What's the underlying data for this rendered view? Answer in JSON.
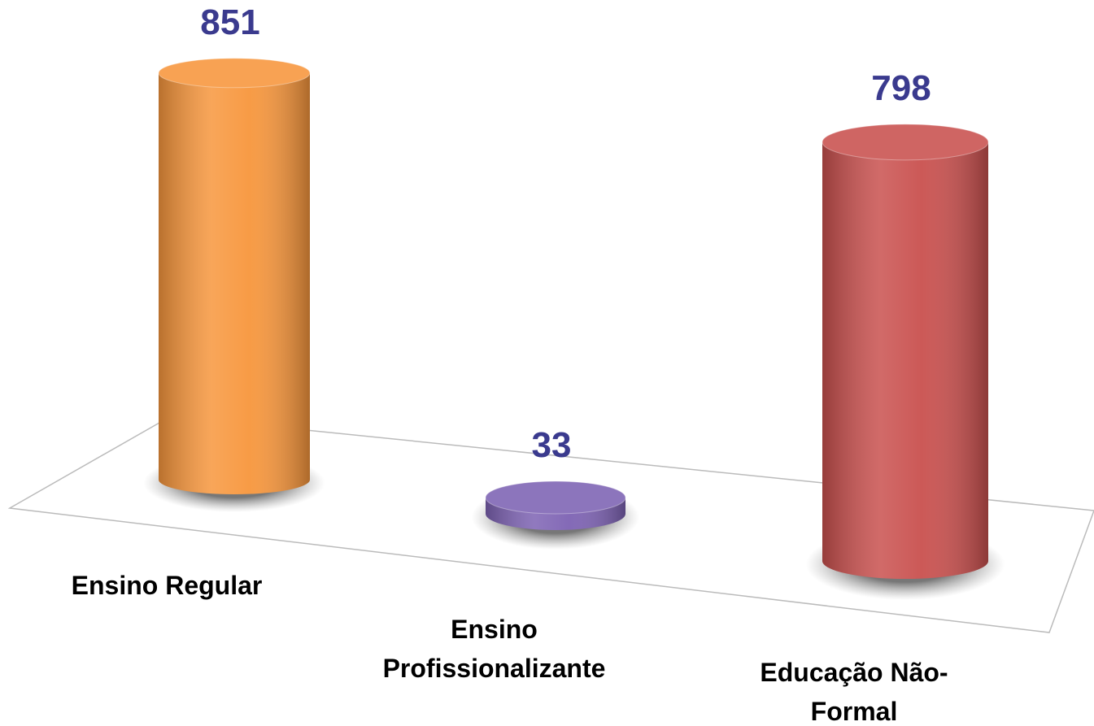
{
  "chart_data": {
    "type": "bar",
    "categories": [
      "Ensino Regular",
      "Ensino Profissionalizante",
      "Educação Não-Formal"
    ],
    "values": [
      851,
      33,
      798
    ],
    "colors": [
      "#f7963c",
      "#7d62b3",
      "#c9504e"
    ],
    "ylim": [
      0,
      900
    ]
  }
}
